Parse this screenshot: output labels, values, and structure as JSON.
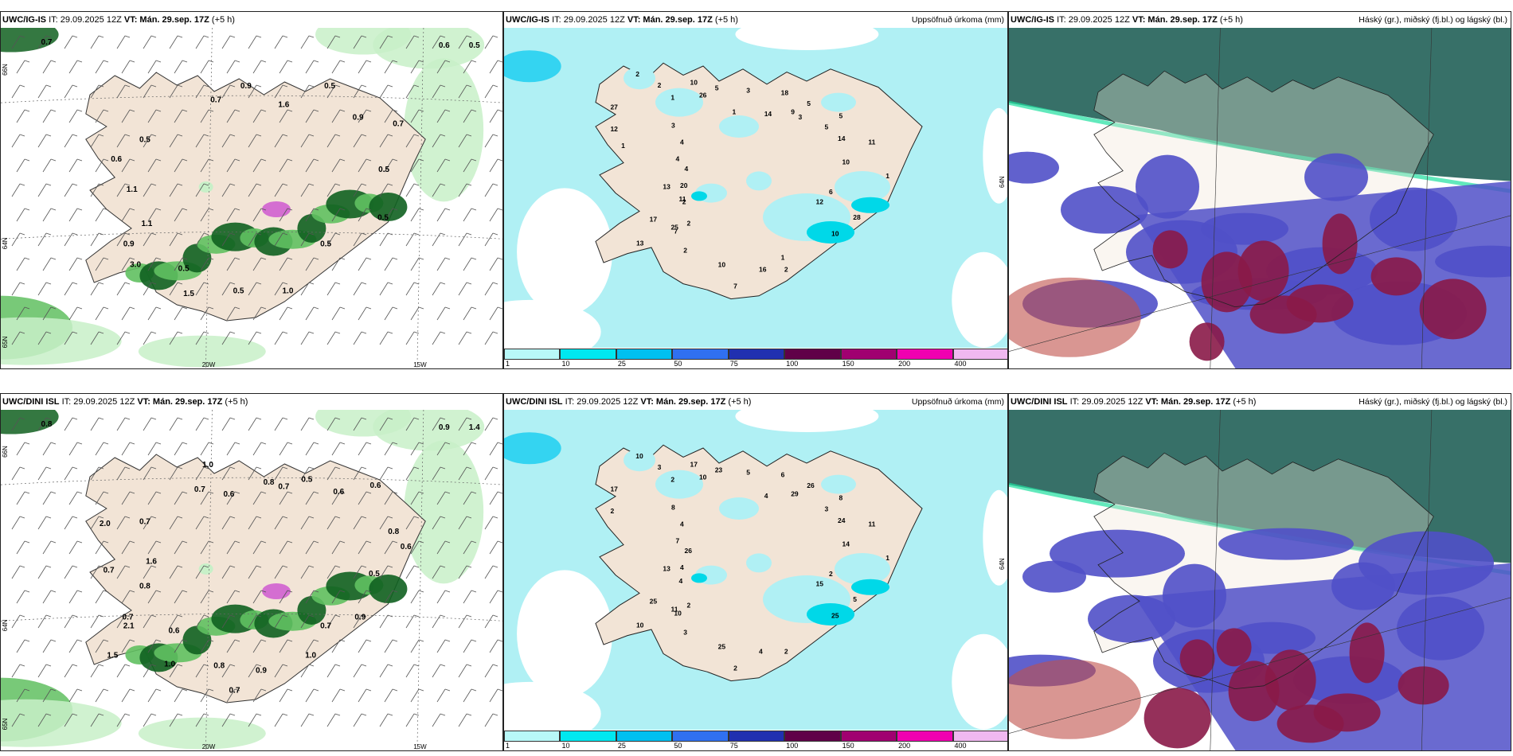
{
  "rows": [
    {
      "model": "UWC/IG-IS",
      "run": "IT: 29.09.2025 12Z",
      "valid_prefix": "VT:",
      "valid": "Mán. 29.sep. 17Z",
      "lead": "(+5 h)",
      "precip_title": "Uppsöfnuð úrkoma (mm)",
      "cloud_title": "Háský (gr.), miðský (fj.bl.) og lágský (bl.)",
      "wind_map_labels": [
        "0.7",
        "0.6",
        "0.5",
        "0.7",
        "0.9",
        "1.6",
        "0.5",
        "0.9",
        "0.7",
        "0.5",
        "0.5",
        "0.5",
        "1.0",
        "0.5",
        "1.5",
        "0.5",
        "3.0",
        "0.9",
        "1.1",
        "1.1",
        "0.6",
        "0.5"
      ],
      "precip_map_labels": [
        "3",
        "11",
        "13",
        "10",
        "12",
        "13",
        "18",
        "7",
        "4",
        "5",
        "7",
        "2",
        "6",
        "11",
        "3",
        "2",
        "4",
        "5",
        "2",
        "2",
        "10",
        "17",
        "5",
        "10",
        "4",
        "9",
        "10",
        "27",
        "14",
        "25",
        "26",
        "28",
        "20",
        "14",
        "16",
        "12",
        "5",
        "2",
        "1",
        "1",
        "2",
        "1",
        "1",
        "1",
        "3"
      ],
      "lat_labels": [
        "66N",
        "64N",
        "65N"
      ],
      "lon_labels": [
        "20W",
        "15W"
      ]
    },
    {
      "model": "UWC/DINI ISL",
      "run": "IT: 29.09.2025 12Z",
      "valid_prefix": "VT:",
      "valid": "Mán. 29.sep. 17Z",
      "lead": "(+5 h)",
      "precip_title": "Uppsöfnuð úrkoma (mm)",
      "cloud_title": "Háský (gr.), miðský (fj.bl.) og lágský (bl.)",
      "wind_map_labels": [
        "0.8",
        "0.9",
        "1.4",
        "0.7",
        "1.0",
        "0.6",
        "0.8",
        "0.7",
        "0.5",
        "0.6",
        "0.6",
        "0.8",
        "0.6",
        "0.5",
        "0.9",
        "0.7",
        "1.0",
        "0.9",
        "0.7",
        "0.8",
        "1.0",
        "0.6",
        "1.5",
        "2.1",
        "0.7",
        "0.8",
        "0.7",
        "1.6",
        "2.0",
        "0.7"
      ],
      "precip_map_labels": [
        "8",
        "11",
        "10",
        "17",
        "15",
        "13",
        "6",
        "2",
        "4",
        "8",
        "10",
        "3",
        "2",
        "4",
        "5",
        "2",
        "7",
        "26",
        "3",
        "10",
        "14",
        "25",
        "23",
        "25",
        "26",
        "29",
        "25",
        "17",
        "24",
        "11",
        "10",
        "5",
        "4",
        "4",
        "4",
        "2",
        "3",
        "2",
        "2",
        "1"
      ],
      "lat_labels": [
        "66N",
        "64N",
        "65N"
      ],
      "lon_labels": [
        "20W",
        "15W"
      ]
    }
  ],
  "colorbar": {
    "ticks": [
      "1",
      "10",
      "25",
      "50",
      "75",
      "100",
      "150",
      "200",
      "400"
    ],
    "colors": [
      "#b8f8f8",
      "#00e8f0",
      "#00c0f0",
      "#3070f0",
      "#2030b0",
      "#600048",
      "#a00070",
      "#f000b0",
      "#f0b8f0"
    ]
  },
  "colors": {
    "land": "#f2e4d6",
    "sea": "#ffffff",
    "precip_light": "#b0f0f4",
    "precip_mid": "#00d8e8",
    "green_light": "#c8f0c8",
    "green_mid": "#60c060",
    "green_dark": "#106020",
    "cloud_high": "#2c6860",
    "cloud_mid": "#5050c8",
    "cloud_low": "#8a1a48"
  }
}
